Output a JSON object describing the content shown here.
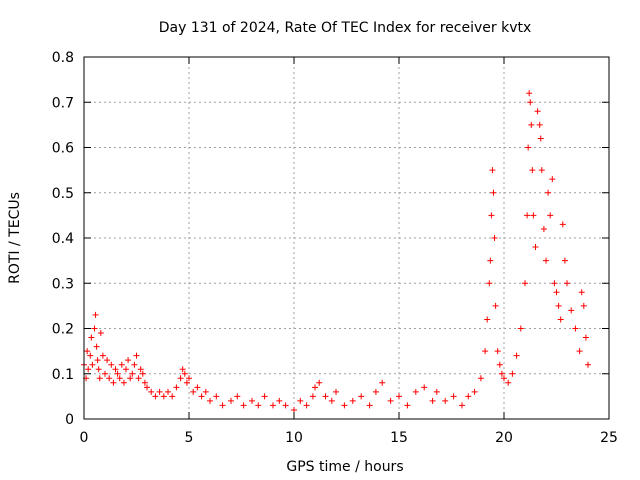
{
  "chart_data": {
    "type": "scatter",
    "title": "Day 131 of 2024, Rate Of TEC Index for receiver kvtx",
    "xlabel": "GPS time / hours",
    "ylabel": "ROTI / TECUs",
    "xlim": [
      0,
      25
    ],
    "ylim": [
      0,
      0.8
    ],
    "x_ticks": [
      "0",
      "5",
      "10",
      "15",
      "20",
      "25"
    ],
    "y_ticks": [
      "0",
      "0.1",
      "0.2",
      "0.3",
      "0.4",
      "0.5",
      "0.6",
      "0.7",
      "0.8"
    ],
    "grid": true,
    "marker": "+",
    "color": "#ff0000",
    "series": [
      {
        "x": [
          0.0,
          0.1,
          0.15,
          0.2,
          0.3,
          0.35,
          0.4,
          0.5,
          0.55,
          0.6,
          0.65,
          0.7,
          0.75,
          0.8,
          0.9,
          1.0,
          1.1,
          1.2,
          1.3,
          1.4,
          1.5,
          1.6,
          1.7,
          1.8,
          1.9,
          2.0,
          2.1,
          2.2,
          2.3,
          2.4,
          2.5,
          2.6,
          2.7,
          2.8,
          2.9,
          3.0,
          3.2,
          3.4,
          3.6,
          3.8,
          4.0,
          4.2,
          4.4,
          4.6,
          4.7,
          4.8,
          4.9,
          5.0,
          5.2,
          5.4,
          5.6,
          5.8,
          6.0,
          6.3,
          6.6,
          7.0,
          7.3,
          7.6,
          8.0,
          8.3,
          8.6,
          9.0,
          9.3,
          9.6,
          10.0,
          10.3,
          10.6,
          10.9,
          11.0,
          11.2,
          11.5,
          11.8,
          12.0,
          12.4,
          12.8,
          13.2,
          13.6,
          13.9,
          14.2,
          14.6,
          15.0,
          15.4,
          15.8,
          16.2,
          16.6,
          16.8,
          17.2,
          17.6,
          18.0,
          18.3,
          18.6,
          18.9,
          19.1,
          19.2,
          19.3,
          19.35,
          19.4,
          19.45,
          19.5,
          19.55,
          19.6,
          19.7,
          19.8,
          19.9,
          20.0,
          20.2,
          20.4,
          20.6,
          20.8,
          21.0,
          21.1,
          21.15,
          21.2,
          21.25,
          21.3,
          21.35,
          21.4,
          21.5,
          21.6,
          21.7,
          21.75,
          21.8,
          21.9,
          22.0,
          22.1,
          22.2,
          22.3,
          22.4,
          22.5,
          22.6,
          22.7,
          22.8,
          22.9,
          23.0,
          23.2,
          23.4,
          23.6,
          23.7,
          23.8,
          23.9,
          24.0
        ],
        "y": [
          0.12,
          0.09,
          0.15,
          0.11,
          0.14,
          0.18,
          0.12,
          0.2,
          0.23,
          0.16,
          0.13,
          0.11,
          0.09,
          0.19,
          0.14,
          0.1,
          0.13,
          0.09,
          0.12,
          0.08,
          0.11,
          0.1,
          0.09,
          0.12,
          0.08,
          0.11,
          0.13,
          0.09,
          0.1,
          0.12,
          0.14,
          0.09,
          0.11,
          0.1,
          0.08,
          0.07,
          0.06,
          0.05,
          0.06,
          0.05,
          0.06,
          0.05,
          0.07,
          0.09,
          0.11,
          0.1,
          0.08,
          0.09,
          0.06,
          0.07,
          0.05,
          0.06,
          0.04,
          0.05,
          0.03,
          0.04,
          0.05,
          0.03,
          0.04,
          0.03,
          0.05,
          0.03,
          0.04,
          0.03,
          0.02,
          0.04,
          0.03,
          0.05,
          0.07,
          0.08,
          0.05,
          0.04,
          0.06,
          0.03,
          0.04,
          0.05,
          0.03,
          0.06,
          0.08,
          0.04,
          0.05,
          0.03,
          0.06,
          0.07,
          0.04,
          0.06,
          0.04,
          0.05,
          0.03,
          0.05,
          0.06,
          0.09,
          0.15,
          0.22,
          0.3,
          0.35,
          0.45,
          0.55,
          0.5,
          0.4,
          0.25,
          0.15,
          0.12,
          0.1,
          0.09,
          0.08,
          0.1,
          0.14,
          0.2,
          0.3,
          0.45,
          0.6,
          0.72,
          0.7,
          0.65,
          0.55,
          0.45,
          0.38,
          0.68,
          0.65,
          0.62,
          0.55,
          0.42,
          0.35,
          0.5,
          0.45,
          0.53,
          0.3,
          0.28,
          0.25,
          0.22,
          0.43,
          0.35,
          0.3,
          0.24,
          0.2,
          0.15,
          0.28,
          0.25,
          0.18,
          0.12
        ]
      }
    ]
  }
}
